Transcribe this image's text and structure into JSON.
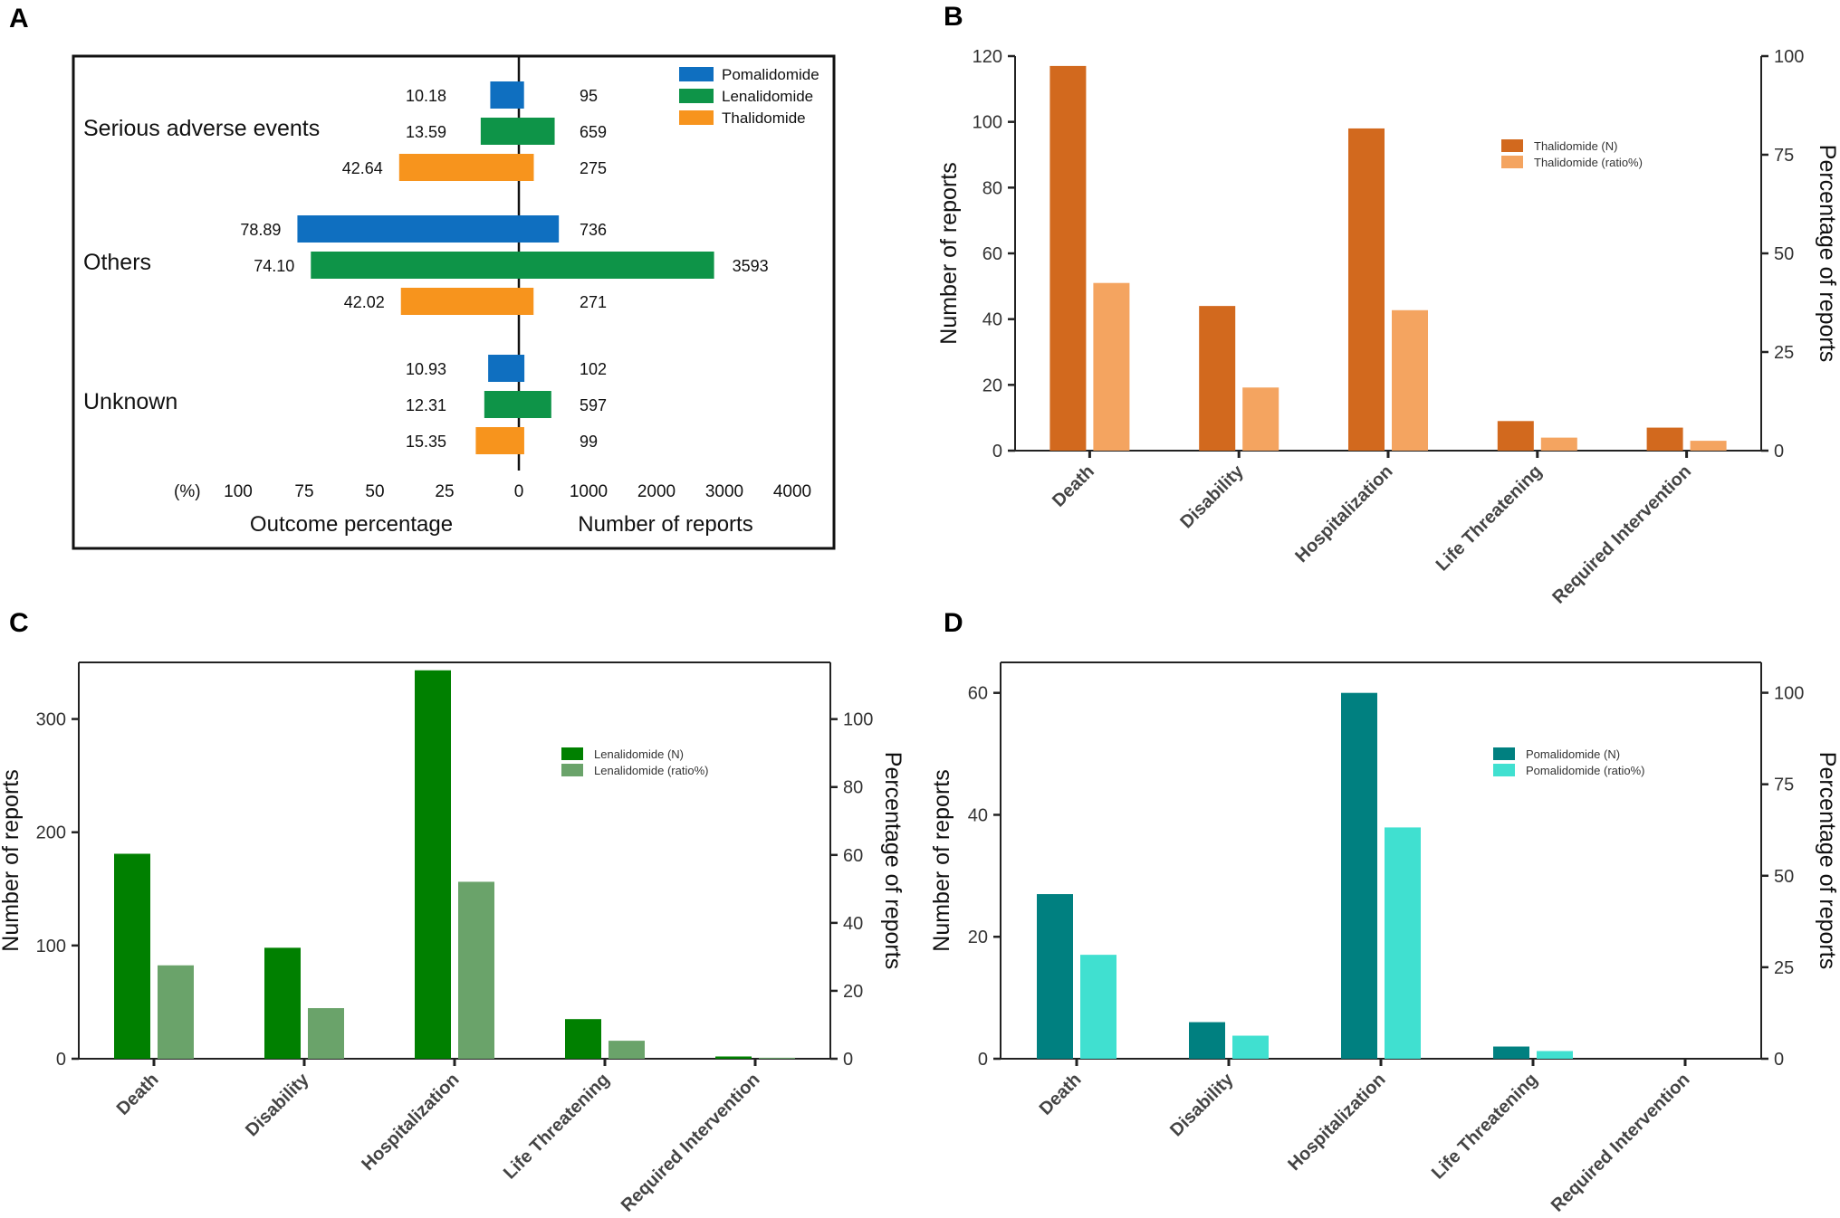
{
  "colors": {
    "pomalidomide": "#0f6fc0",
    "lenalidomide": "#0e9448",
    "thalidomide": "#f7941d",
    "thal_n": "#d2691e",
    "thal_ratio": "#f4a460",
    "lena_n": "#008000",
    "lena_ratio": "#6aa36a",
    "poma_n": "#008080",
    "poma_ratio": "#40e0d0"
  },
  "panelA": {
    "letter": "A",
    "legend": [
      "Pomalidomide",
      "Lenalidomide",
      "Thalidomide"
    ],
    "groups": [
      {
        "label": "Serious adverse events",
        "pct": [
          10.18,
          13.59,
          42.64
        ],
        "pct_text": [
          "10.18",
          "13.59",
          "42.64"
        ],
        "counts": [
          95,
          659,
          275
        ],
        "count_text": [
          "95",
          "659",
          "275"
        ]
      },
      {
        "label": "Others",
        "pct": [
          78.89,
          74.1,
          42.02
        ],
        "pct_text": [
          "78.89",
          "74.10",
          "42.02"
        ],
        "counts": [
          736,
          3593,
          271
        ],
        "count_text": [
          "736",
          "3593",
          "271"
        ]
      },
      {
        "label": "Unknown",
        "pct": [
          10.93,
          12.31,
          15.35
        ],
        "pct_text": [
          "10.93",
          "12.31",
          "15.35"
        ],
        "counts": [
          102,
          597,
          99
        ],
        "count_text": [
          "102",
          "597",
          "99"
        ]
      }
    ],
    "left_unit": "(%)",
    "left_ticks": [
      "100",
      "75",
      "50",
      "25",
      "0"
    ],
    "right_ticks": [
      "1000",
      "2000",
      "3000",
      "4000"
    ],
    "left_title": "Outcome percentage",
    "right_title": "Number of reports"
  },
  "chart_data": [
    {
      "panel": "B",
      "type": "bar",
      "categories": [
        "Death",
        "Disability",
        "Hospitalization",
        "Life Threatening",
        "Required Intervention"
      ],
      "series": [
        {
          "name": "Thalidomide (N)",
          "axis": "left",
          "values": [
            117,
            44,
            98,
            9,
            7
          ]
        },
        {
          "name": "Thalidomide (ratio%)",
          "axis": "right",
          "values": [
            42.5,
            16.0,
            35.6,
            3.3,
            2.5
          ]
        }
      ],
      "ylabel": "Number of reports",
      "ylim": [
        0,
        120
      ],
      "yticks": [
        0,
        20,
        40,
        60,
        80,
        100,
        120
      ],
      "y2label": "Percentage of reports",
      "y2lim": [
        0,
        100
      ],
      "y2ticks": [
        0,
        25,
        50,
        75,
        100
      ],
      "legend_position": "top-right"
    },
    {
      "panel": "C",
      "type": "bar",
      "categories": [
        "Death",
        "Disability",
        "Hospitalization",
        "Life Threatening",
        "Required Intervention"
      ],
      "series": [
        {
          "name": "Lenalidomide (N)",
          "axis": "left",
          "values": [
            181,
            98,
            343,
            35,
            2
          ]
        },
        {
          "name": "Lenalidomide (ratio%)",
          "axis": "right",
          "values": [
            27.5,
            14.9,
            52.1,
            5.3,
            0.3
          ]
        }
      ],
      "ylabel": "Number of reports",
      "ylim": [
        0,
        350
      ],
      "yticks": [
        0,
        100,
        200,
        300
      ],
      "y2label": "Percentage of reports",
      "y2lim": [
        0,
        116.7
      ],
      "y2ticks": [
        0,
        20,
        40,
        60,
        80,
        100
      ],
      "legend_position": "top-right"
    },
    {
      "panel": "D",
      "type": "bar",
      "categories": [
        "Death",
        "Disability",
        "Hospitalization",
        "Life Threatening",
        "Required Intervention"
      ],
      "series": [
        {
          "name": "Pomalidomide (N)",
          "axis": "left",
          "values": [
            27,
            6,
            60,
            2,
            0
          ]
        },
        {
          "name": "Pomalidomide (ratio%)",
          "axis": "right",
          "values": [
            28.4,
            6.3,
            63.2,
            2.1,
            0
          ]
        }
      ],
      "ylabel": "Number of reports",
      "ylim": [
        0,
        65
      ],
      "yticks": [
        0,
        20,
        40,
        60
      ],
      "y2label": "Percentage of reports",
      "y2lim": [
        0,
        108.3
      ],
      "y2ticks": [
        0,
        25,
        50,
        75,
        100
      ],
      "legend_position": "top-right"
    }
  ]
}
